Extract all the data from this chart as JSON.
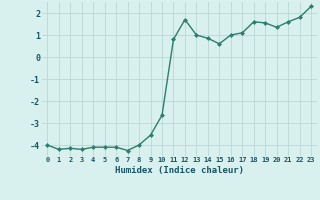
{
  "x": [
    0,
    1,
    2,
    3,
    4,
    5,
    6,
    7,
    8,
    9,
    10,
    11,
    12,
    13,
    14,
    15,
    16,
    17,
    18,
    19,
    20,
    21,
    22,
    23
  ],
  "y": [
    -4.0,
    -4.2,
    -4.15,
    -4.2,
    -4.1,
    -4.1,
    -4.1,
    -4.25,
    -4.0,
    -3.55,
    -2.65,
    0.8,
    1.7,
    1.0,
    0.85,
    0.6,
    1.0,
    1.1,
    1.6,
    1.55,
    1.35,
    1.6,
    1.8,
    2.3
  ],
  "xlabel": "Humidex (Indice chaleur)",
  "xlim_left": -0.5,
  "xlim_right": 23.5,
  "ylim": [
    -4.5,
    2.5
  ],
  "yticks": [
    -4,
    -3,
    -2,
    -1,
    0,
    1,
    2
  ],
  "xticks": [
    0,
    1,
    2,
    3,
    4,
    5,
    6,
    7,
    8,
    9,
    10,
    11,
    12,
    13,
    14,
    15,
    16,
    17,
    18,
    19,
    20,
    21,
    22,
    23
  ],
  "line_color": "#2e7d6e",
  "marker": "D",
  "marker_size": 2.0,
  "bg_color": "#d8f0ee",
  "grid_color": "#b8d8d4",
  "tick_label_color": "#1a5566",
  "xlabel_color": "#1a5566",
  "line_width": 1.0
}
